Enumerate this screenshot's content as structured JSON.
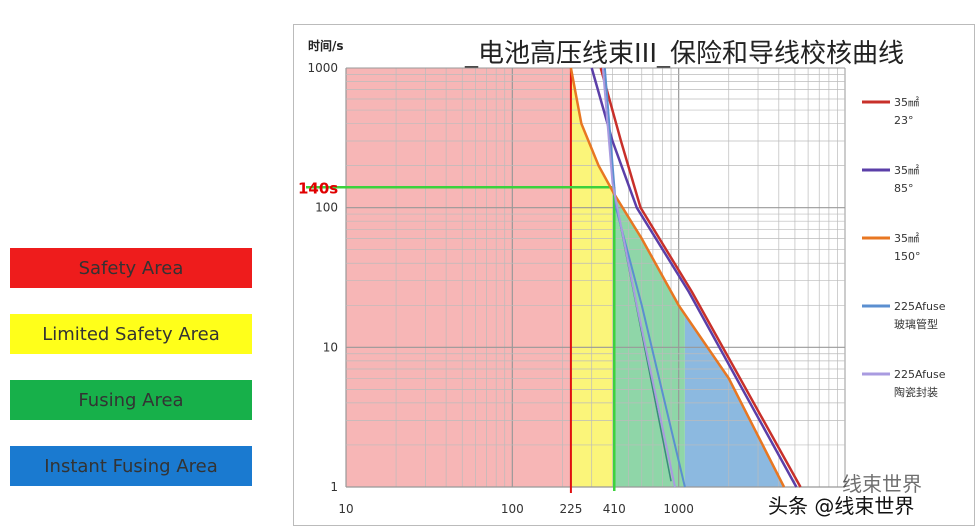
{
  "zones": [
    {
      "label": "Safety Area",
      "color": "#ee1c1c"
    },
    {
      "label": "Limited  Safety Area",
      "color": "#ffff1a"
    },
    {
      "label": "Fusing Area",
      "color": "#17b04a"
    },
    {
      "label": "Instant Fusing Area",
      "color": "#1a7ad0"
    }
  ],
  "watermark": {
    "line1": "线束世界",
    "line2": "头条 @线束世界"
  },
  "chart_data": {
    "type": "line",
    "title": "_电池高压线束III_保险和导线校核曲线",
    "ylabel": "时间/s",
    "xlabel": "",
    "xscale": "log",
    "yscale": "log",
    "xlim": [
      10,
      10000
    ],
    "ylim": [
      1,
      1000
    ],
    "xticks": [
      {
        "v": 10,
        "label": "10"
      },
      {
        "v": 100,
        "label": "100"
      },
      {
        "v": 225,
        "label": "225"
      },
      {
        "v": 410,
        "label": "410"
      },
      {
        "v": 1000,
        "label": "1000"
      }
    ],
    "yticks": [
      {
        "v": 1,
        "label": "1"
      },
      {
        "v": 10,
        "label": "10"
      },
      {
        "v": 100,
        "label": "100"
      },
      {
        "v": 1000,
        "label": "1000"
      }
    ],
    "annotation": {
      "label": "140s",
      "time": 140,
      "current": 410,
      "color": "#e00000"
    },
    "legend_position": "right",
    "series": [
      {
        "name": "35㎟ 23°",
        "name1": "35㎟",
        "name2": "23°",
        "color": "#c8302a",
        "points": [
          [
            340,
            1000
          ],
          [
            450,
            300
          ],
          [
            590,
            100
          ],
          [
            1200,
            25
          ],
          [
            5400,
            1
          ]
        ]
      },
      {
        "name": "35㎟ 85°",
        "name1": "35㎟",
        "name2": "85°",
        "color": "#5b3fa8",
        "points": [
          [
            300,
            1000
          ],
          [
            400,
            300
          ],
          [
            560,
            100
          ],
          [
            1150,
            25
          ],
          [
            5100,
            1
          ]
        ]
      },
      {
        "name": "35㎟ 150°",
        "name1": "35㎟",
        "name2": "150°",
        "color": "#e87722",
        "points": [
          [
            225,
            1000
          ],
          [
            260,
            400
          ],
          [
            330,
            200
          ],
          [
            410,
            125
          ],
          [
            600,
            60
          ],
          [
            1000,
            20
          ],
          [
            2000,
            6
          ],
          [
            4300,
            1
          ]
        ]
      },
      {
        "name": "225Afuse 玻璃管型",
        "name1": "225Afuse",
        "name2": "玻璃管型",
        "color": "#5b8fd0",
        "points": [
          [
            360,
            1000
          ],
          [
            420,
            100
          ],
          [
            600,
            20
          ],
          [
            1090,
            1
          ]
        ]
      },
      {
        "name": "225Afuse 陶瓷封装",
        "name1": "225Afuse",
        "name2": "陶瓷封装",
        "color": "#a99be0",
        "points": [
          [
            350,
            1000
          ],
          [
            400,
            150
          ],
          [
            560,
            20
          ],
          [
            950,
            1
          ]
        ]
      }
    ]
  }
}
